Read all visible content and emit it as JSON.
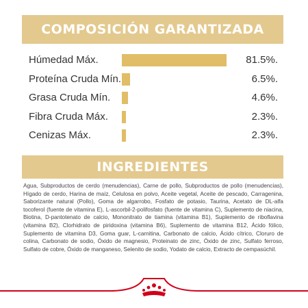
{
  "composition": {
    "title": "COMPOSICIÓN GARANTIZADA",
    "rows": [
      {
        "label": "Húmedad Máx.",
        "value": "81.5%.",
        "level": 81.5
      },
      {
        "label": "Proteína Cruda Mín.",
        "value": "6.5%.",
        "level": 6.5
      },
      {
        "label": "Grasa Cruda Mín.",
        "value": "4.6%.",
        "level": 4.6
      },
      {
        "label": "Fibra Cruda Máx.",
        "value": "2.3%.",
        "level": 2.3
      },
      {
        "label": "Cenizas Máx.",
        "value": "2.3%.",
        "level": 2.3
      }
    ]
  },
  "ingredients": {
    "title": "INGREDIENTES",
    "text": "Agua, Subproductos de cerdo (menudencias), Carne de pollo, Subproductos de pollo (menudencias), Hígado de cerdo, Harina de maíz, Celulosa en polvo, Aceite vegetal, Aceite de pescado, Carragenina, Saborizante natural (Pollo), Goma de algarrobo, Fosfato de potasio, Taurina, Acetato de DL-alfa tocoferol (fuente de vitamina E), L-ascorbil-2-polifosfato (fuente de vitamina C), Suplemento de niacina, Biotina, D-pantotenato de calcio, Mononitrato de tiamina (vitamina B1), Suplemento de riboflavina (vitamina B2), Clorhidrato de piridoxina (vitamina B6), Suplemento de vitamina B12, Ácido fólico, Suplemento de vitamina D3, Goma guar, L-carnitina, Carbonato de calcio, Ácido cítrico, Cloruro de colina, Carbonato de sodio, Óxido de magnesio, Proteinato de zinc, Óxido de zinc, Sulfato ferroso, Sulfato de cobre, Óxido de manganeso, Selenito de sodio, Yodato de calcio, Extracto de cempasúchil."
  },
  "colors": {
    "banner": "#e3c98e",
    "bar": "#e0bd66",
    "brand_red": "#d0021b"
  },
  "logo": {
    "icon": "royal-canin-crown-logo"
  }
}
